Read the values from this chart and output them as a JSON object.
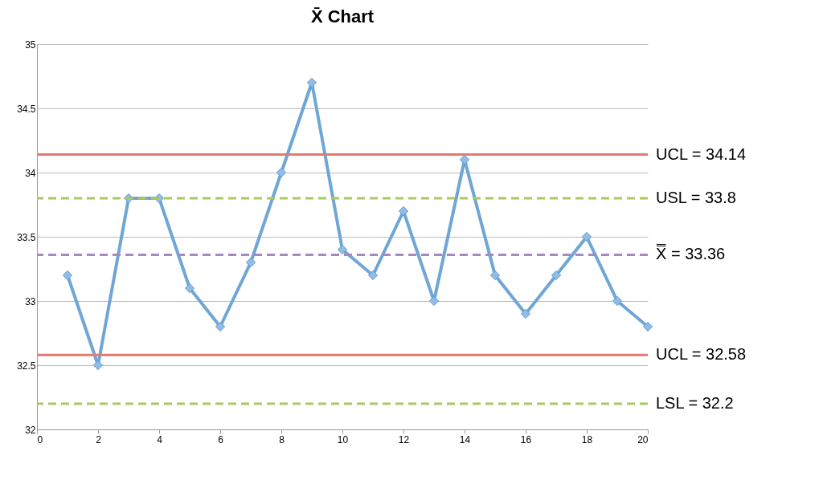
{
  "chart_data": {
    "type": "line",
    "title": "X̄ Chart",
    "x": [
      1,
      2,
      3,
      4,
      5,
      6,
      7,
      8,
      9,
      10,
      11,
      12,
      13,
      14,
      15,
      16,
      17,
      18,
      19,
      20
    ],
    "series": [
      {
        "color": "#6fa6d6",
        "values": [
          33.2,
          32.5,
          33.8,
          33.8,
          33.1,
          32.8,
          33.3,
          34.0,
          34.7,
          33.4,
          33.2,
          33.7,
          33.0,
          34.1,
          33.2,
          32.9,
          33.2,
          33.5,
          33.0,
          32.8
        ]
      }
    ],
    "xlim": [
      0,
      20
    ],
    "xticks": [
      0,
      2,
      4,
      6,
      8,
      10,
      12,
      14,
      16,
      18,
      20
    ],
    "ylim": [
      32,
      35
    ],
    "yticks": [
      32,
      32.5,
      33,
      33.5,
      34,
      34.5,
      35
    ],
    "grid": "y",
    "marker": "diamond",
    "line_style": "solid",
    "ref_lines": [
      {
        "axis": "y",
        "value": 34.14,
        "label": "UCL = 34.14",
        "color": "#e07b73",
        "line_style": "solid"
      },
      {
        "axis": "y",
        "value": 33.8,
        "label": "USL = 33.8",
        "color": "#a9c862",
        "line_style": "dashed"
      },
      {
        "axis": "y",
        "value": 33.36,
        "label": "X̿ = 33.36",
        "color": "#a689c0",
        "line_style": "dashed"
      },
      {
        "axis": "y",
        "value": 32.58,
        "label": "UCL = 32.58",
        "color": "#e07b73",
        "line_style": "solid"
      },
      {
        "axis": "y",
        "value": 32.2,
        "label": "LSL = 32.2",
        "color": "#a9c862",
        "line_style": "dashed"
      }
    ]
  }
}
